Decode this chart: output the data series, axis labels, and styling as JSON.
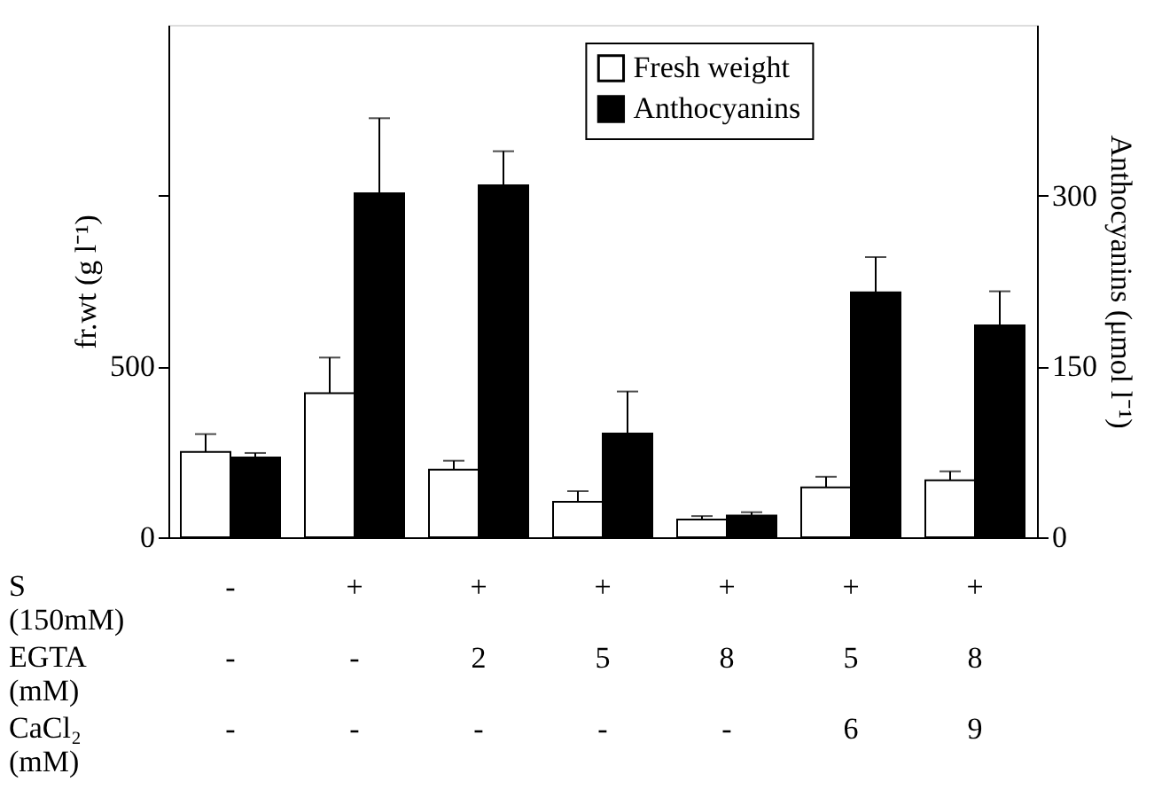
{
  "chart_data": {
    "type": "bar",
    "categories": [
      "-\n-\n-",
      "+\n-\n-",
      "+\n2\n-",
      "+\n5\n-",
      "+\n8\n-",
      "+\n5\n6",
      "+\n8\n9"
    ],
    "series": [
      {
        "name": "Fresh weight",
        "color": "#ffffff",
        "values": [
          250,
          422,
          198,
          104,
          52,
          146,
          167
        ],
        "errors": [
          [
            250,
            302
          ],
          [
            422,
            526
          ],
          [
            198,
            224
          ],
          [
            104,
            135
          ],
          [
            52,
            62
          ],
          [
            146,
            177
          ],
          [
            167,
            193
          ]
        ]
      },
      {
        "name": "Anthocyanins",
        "color": "#000000",
        "axis": "y2",
        "values": [
          70,
          302,
          309,
          91,
          19,
          215,
          186
        ],
        "errors": [
          [
            70,
            74
          ],
          [
            302,
            368
          ],
          [
            309,
            339
          ],
          [
            91,
            128
          ],
          [
            19,
            22
          ],
          [
            215,
            246
          ],
          [
            186,
            216
          ]
        ]
      }
    ],
    "ylabel": "fr.wt (g l⁻¹)",
    "y2label": "Anthocyanins (μmol l⁻¹)",
    "ylim": [
      0,
      1500
    ],
    "yticks": [
      0,
      500,
      {
        "value": 1000,
        "label": null
      }
    ],
    "y2lim": [
      0,
      450
    ],
    "y2ticks": [
      0,
      150,
      300
    ],
    "annotations": [
      "S\n(150mM)",
      "EGTA\n(mM)",
      "CaCl₂\n(mM)"
    ],
    "legend": "top right",
    "grid": false
  }
}
